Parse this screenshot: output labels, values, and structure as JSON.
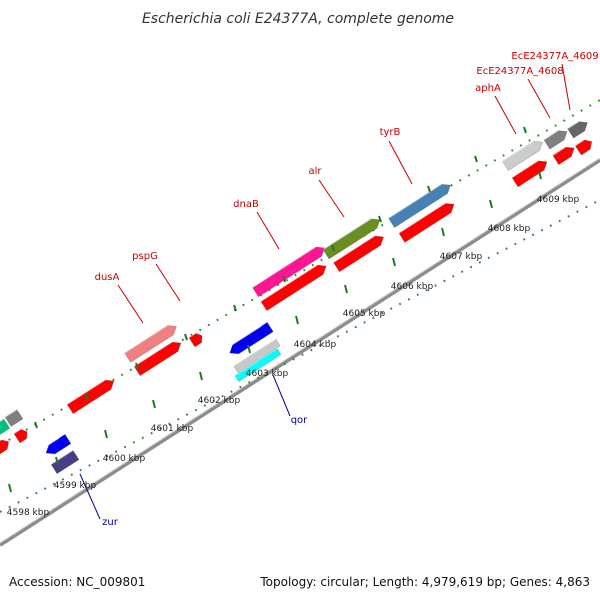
{
  "title": "Escherichia coli E24377A, complete genome",
  "footer": {
    "accession": "Accession: NC_009801",
    "summary": "Topology: circular; Length: 4,979,619 bp; Genes: 4,863"
  },
  "colors": {
    "backbone": "#8c8c8c",
    "tick_major": "#1f7a1f",
    "cds": "#ff0000",
    "label_forward": "#cc0000",
    "label_reverse": "#00008b"
  },
  "ticks": [
    {
      "label": "4598 kbp"
    },
    {
      "label": "4599 kbp"
    },
    {
      "label": "4600 kbp"
    },
    {
      "label": "4601 kbp"
    },
    {
      "label": "4602 kbp"
    },
    {
      "label": "4603 kbp"
    },
    {
      "label": "4604 kbp"
    },
    {
      "label": "4605 kbp"
    },
    {
      "label": "4606 kbp"
    },
    {
      "label": "4607 kbp"
    },
    {
      "label": "4608 kbp"
    },
    {
      "label": "4609 kbp"
    }
  ],
  "genes": [
    {
      "label": "dusA",
      "strand": "forward"
    },
    {
      "label": "pspG",
      "strand": "forward"
    },
    {
      "label": "dnaB",
      "strand": "forward"
    },
    {
      "label": "alr",
      "strand": "forward"
    },
    {
      "label": "tyrB",
      "strand": "forward"
    },
    {
      "label": "aphA",
      "strand": "forward"
    },
    {
      "label": "EcE24377A_4608",
      "strand": "forward"
    },
    {
      "label": "EcE24377A_4609",
      "strand": "forward"
    },
    {
      "label": "qor",
      "strand": "reverse"
    },
    {
      "label": "zur",
      "strand": "reverse"
    }
  ]
}
